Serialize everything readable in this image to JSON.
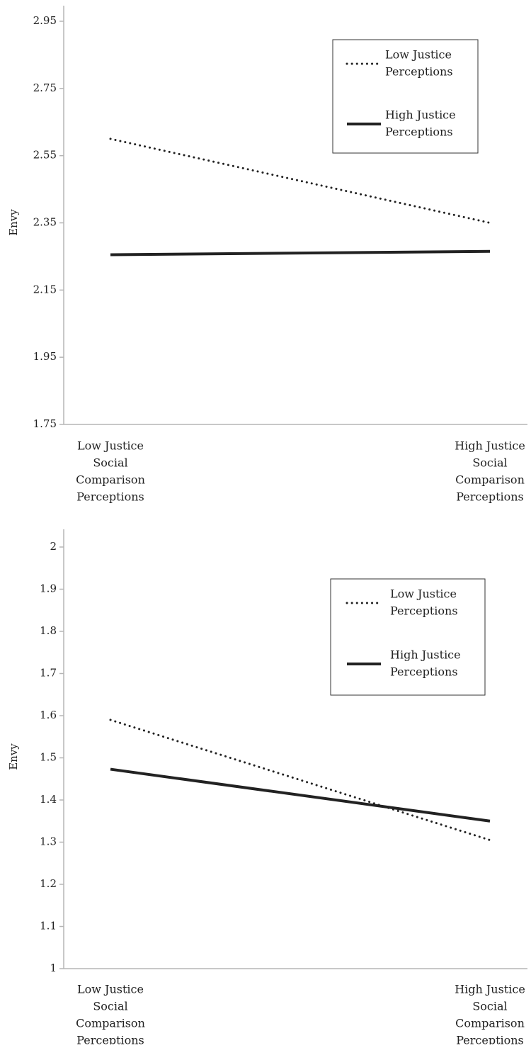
{
  "chart_data": [
    {
      "type": "line",
      "title": "",
      "xlabel": "",
      "ylabel": "Envy",
      "ylim": [
        1.75,
        2.95
      ],
      "yticks": [
        "2.95",
        "2.75",
        "2.55",
        "2.35",
        "2.15",
        "1.95",
        "1.75"
      ],
      "categories": [
        [
          "Low Justice",
          "Social",
          "Comparison",
          "Perceptions"
        ],
        [
          "High Justice",
          "Social",
          "Comparison",
          "Perceptions"
        ]
      ],
      "series": [
        {
          "name": [
            "Low Justice",
            "Perceptions"
          ],
          "style": "dotted",
          "values": [
            2.6,
            2.35
          ]
        },
        {
          "name": [
            "High Justice",
            "Perceptions"
          ],
          "style": "solid",
          "values": [
            2.255,
            2.265
          ]
        }
      ],
      "grid": false,
      "legend": "top-right",
      "colors": {
        "line": "#222222",
        "axis": "#b5b5b5"
      }
    },
    {
      "type": "line",
      "title": "",
      "xlabel": "",
      "ylabel": "Envy",
      "ylim": [
        1,
        2
      ],
      "yticks": [
        "2",
        "1.9",
        "1.8",
        "1.7",
        "1.6",
        "1.5",
        "1.4",
        "1.3",
        "1.2",
        "1.1",
        "1"
      ],
      "categories": [
        [
          "Low Justice",
          "Social",
          "Comparison",
          "Perceptions"
        ],
        [
          "High Justice",
          "Social",
          "Comparison",
          "Perceptions"
        ]
      ],
      "series": [
        {
          "name": [
            "Low Justice",
            "Perceptions"
          ],
          "style": "dotted",
          "values": [
            1.59,
            1.305
          ]
        },
        {
          "name": [
            "High Justice",
            "Perceptions"
          ],
          "style": "solid",
          "values": [
            1.473,
            1.35
          ]
        }
      ],
      "grid": false,
      "legend": "top-right",
      "colors": {
        "line": "#222222",
        "axis": "#b5b5b5"
      }
    }
  ]
}
